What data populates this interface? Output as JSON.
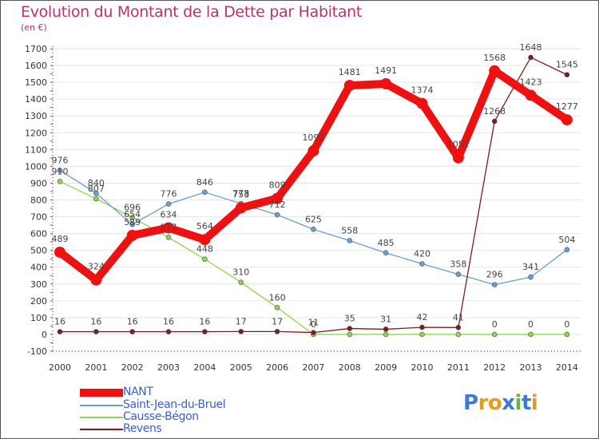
{
  "chart_data": {
    "type": "line",
    "title": "Evolution du Montant de la Dette par Habitant",
    "subtitle": "(en €)",
    "xlabel": "",
    "ylabel": "",
    "ylim": [
      -100,
      1700
    ],
    "yticks": [
      -100,
      0,
      100,
      200,
      300,
      400,
      500,
      600,
      700,
      800,
      900,
      1000,
      1100,
      1200,
      1300,
      1400,
      1500,
      1600,
      1700
    ],
    "categories": [
      "2000",
      "2001",
      "2002",
      "2003",
      "2004",
      "2005",
      "2006",
      "2007",
      "2008",
      "2009",
      "2010",
      "2011",
      "2012",
      "2013",
      "2014"
    ],
    "series": [
      {
        "name": "NANT",
        "color": "#ee1111",
        "values": [
          489,
          324,
          589,
          634,
          564,
          753,
          809,
          1092,
          1481,
          1491,
          1374,
          1051,
          1568,
          1423,
          1277
        ],
        "labels": [
          "489",
          "324",
          "589",
          "634",
          "564",
          "753",
          "809",
          "1092",
          "1481",
          "1491",
          "1374",
          "1051",
          "1568",
          "1423",
          "1277"
        ]
      },
      {
        "name": "Saint-Jean-du-Bruel",
        "color": "#6a9ed6",
        "values": [
          976,
          840,
          654,
          776,
          846,
          778,
          712,
          625,
          558,
          485,
          420,
          358,
          296,
          341,
          504
        ],
        "labels": [
          "976",
          "840",
          "654",
          "776",
          "846",
          "778",
          "712",
          "625",
          "558",
          "485",
          "420",
          "358",
          "296",
          "341",
          "504"
        ]
      },
      {
        "name": "Causse-Bégon",
        "color": "#8fd44f",
        "values": [
          910,
          807,
          696,
          577,
          448,
          310,
          160,
          0,
          0,
          0,
          0,
          0,
          0,
          0,
          0
        ],
        "labels": [
          "910",
          "807",
          "696",
          "577",
          "448",
          "310",
          "160",
          "0",
          "",
          "",
          "",
          "",
          "0",
          "0",
          "0"
        ]
      },
      {
        "name": "Revens",
        "color": "#7a1c24",
        "values": [
          16,
          16,
          16,
          16,
          16,
          17,
          17,
          11,
          35,
          31,
          42,
          41,
          1268,
          1648,
          1545
        ],
        "labels": [
          "16",
          "16",
          "16",
          "16",
          "16",
          "17",
          "17",
          "11",
          "35",
          "31",
          "42",
          "41",
          "1268",
          "1648",
          "1545"
        ]
      }
    ],
    "legend": "bottom-left"
  },
  "logo": {
    "text": "Proxiti",
    "letters": [
      "P",
      "r",
      "o",
      "x",
      "i",
      "t",
      "i"
    ],
    "colors": [
      "#3b7bd1",
      "#e89c1a",
      "#e89c1a",
      "#3b7bd1",
      "#6db33f",
      "#3b7bd1",
      "#e89c1a"
    ]
  }
}
